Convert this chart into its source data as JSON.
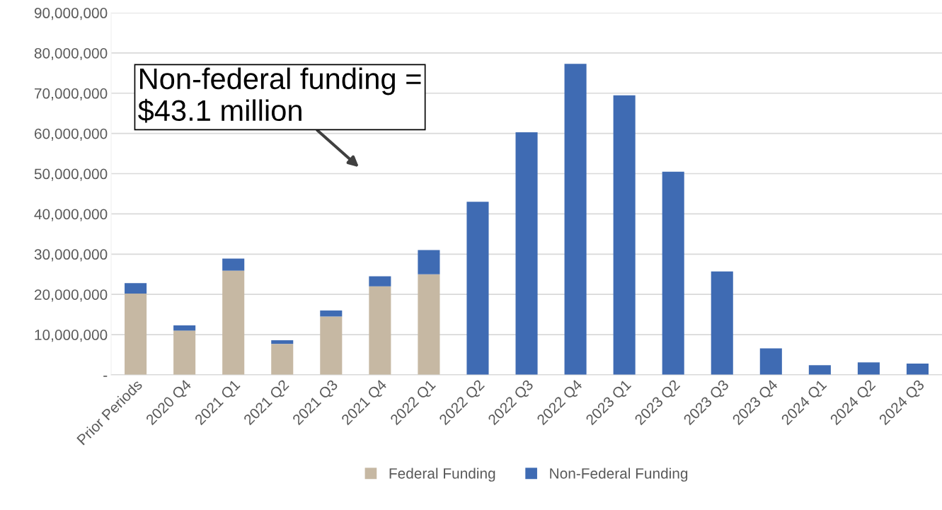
{
  "chart_data": {
    "type": "bar",
    "stacked": true,
    "categories": [
      "Prior Periods",
      "2020 Q4",
      "2021 Q1",
      "2021 Q2",
      "2021 Q3",
      "2021 Q4",
      "2022 Q1",
      "2022 Q2",
      "2022 Q3",
      "2022 Q4",
      "2023 Q1",
      "2023 Q2",
      "2023 Q3",
      "2023 Q4",
      "2024 Q1",
      "2024 Q2",
      "2024 Q3"
    ],
    "series": [
      {
        "name": "Federal Funding",
        "color": "#c6b8a3",
        "values": [
          20200000,
          11000000,
          25900000,
          7700000,
          14500000,
          22000000,
          25000000,
          0,
          0,
          0,
          0,
          0,
          0,
          0,
          0,
          0,
          0
        ]
      },
      {
        "name": "Non-Federal Funding",
        "color": "#3f6bb3",
        "values": [
          2600000,
          1300000,
          3000000,
          900000,
          1500000,
          2500000,
          6000000,
          43000000,
          60300000,
          77300000,
          69500000,
          50500000,
          25700000,
          6600000,
          2400000,
          3100000,
          2800000
        ]
      }
    ],
    "ylim": [
      0,
      90000000
    ],
    "yticks": [
      {
        "value": 0,
        "label": "-"
      },
      {
        "value": 10000000,
        "label": "10,000,000"
      },
      {
        "value": 20000000,
        "label": "20,000,000"
      },
      {
        "value": 30000000,
        "label": "30,000,000"
      },
      {
        "value": 40000000,
        "label": "40,000,000"
      },
      {
        "value": 50000000,
        "label": "50,000,000"
      },
      {
        "value": 60000000,
        "label": "60,000,000"
      },
      {
        "value": 70000000,
        "label": "70,000,000"
      },
      {
        "value": 80000000,
        "label": "80,000,000"
      },
      {
        "value": 90000000,
        "label": "90,000,000"
      }
    ],
    "grid": "y",
    "legend": "bottom",
    "annotations": [
      "Non-federal funding =\n$43.1 million"
    ]
  }
}
